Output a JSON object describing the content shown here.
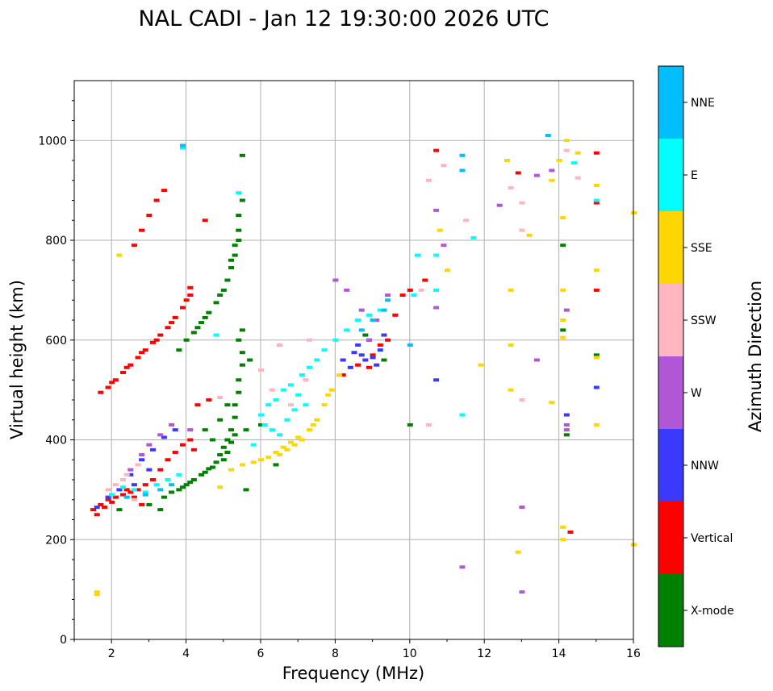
{
  "chart_data": {
    "type": "scatter",
    "title": "NAL CADI - Jan 12 19:30:00 2026 UTC",
    "xlabel": "Frequency (MHz)",
    "ylabel": "Virtual height (km)",
    "xlim": [
      1,
      16
    ],
    "ylim": [
      0,
      1120
    ],
    "xticks": [
      2,
      4,
      6,
      8,
      10,
      12,
      14,
      16
    ],
    "xtick_labels": [
      "2",
      "4",
      "6",
      "8",
      "10",
      "12",
      "14",
      "16"
    ],
    "yticks": [
      0,
      200,
      400,
      600,
      800,
      1000
    ],
    "ytick_labels": [
      "0",
      "200",
      "400",
      "600",
      "800",
      "1000"
    ],
    "grid": true,
    "colorbar": {
      "label": "Azimuth Direction",
      "categories": [
        "X-mode",
        "Vertical",
        "NNW",
        "W",
        "SSW",
        "SSE",
        "E",
        "NNE"
      ],
      "colors": [
        "#008000",
        "#ff0000",
        "#3a3aff",
        "#b157d6",
        "#ffb6c1",
        "#ffd700",
        "#00ffff",
        "#00bfff"
      ]
    },
    "series": [
      {
        "name": "X-mode",
        "color": "#008000",
        "points": [
          [
            3.0,
            270
          ],
          [
            3.4,
            285
          ],
          [
            3.8,
            300
          ],
          [
            4.0,
            310
          ],
          [
            4.2,
            320
          ],
          [
            4.4,
            330
          ],
          [
            4.6,
            342
          ],
          [
            4.8,
            355
          ],
          [
            4.9,
            370
          ],
          [
            5.0,
            385
          ],
          [
            5.1,
            400
          ],
          [
            5.2,
            420
          ],
          [
            5.3,
            445
          ],
          [
            5.3,
            470
          ],
          [
            5.4,
            495
          ],
          [
            5.4,
            520
          ],
          [
            5.5,
            550
          ],
          [
            5.5,
            575
          ],
          [
            5.4,
            600
          ],
          [
            5.5,
            620
          ],
          [
            3.3,
            260
          ],
          [
            3.6,
            295
          ],
          [
            3.9,
            305
          ],
          [
            4.1,
            315
          ],
          [
            4.5,
            335
          ],
          [
            4.7,
            345
          ],
          [
            5.0,
            360
          ],
          [
            5.1,
            375
          ],
          [
            5.2,
            395
          ],
          [
            5.3,
            410
          ],
          [
            3.8,
            580
          ],
          [
            4.0,
            600
          ],
          [
            4.2,
            615
          ],
          [
            4.4,
            635
          ],
          [
            4.6,
            655
          ],
          [
            4.8,
            675
          ],
          [
            5.0,
            700
          ],
          [
            5.1,
            720
          ],
          [
            5.2,
            745
          ],
          [
            5.3,
            770
          ],
          [
            5.3,
            790
          ],
          [
            5.4,
            820
          ],
          [
            5.4,
            850
          ],
          [
            5.5,
            880
          ],
          [
            5.5,
            970
          ],
          [
            4.3,
            625
          ],
          [
            4.5,
            645
          ],
          [
            4.9,
            690
          ],
          [
            5.2,
            760
          ],
          [
            5.4,
            800
          ],
          [
            4.5,
            420
          ],
          [
            4.7,
            400
          ],
          [
            4.9,
            440
          ],
          [
            5.1,
            470
          ],
          [
            5.6,
            300
          ],
          [
            5.6,
            420
          ],
          [
            5.7,
            560
          ],
          [
            6.0,
            430
          ],
          [
            6.4,
            350
          ],
          [
            2.2,
            260
          ],
          [
            14.1,
            790
          ],
          [
            14.1,
            620
          ],
          [
            14.2,
            410
          ],
          [
            15.0,
            570
          ],
          [
            10.0,
            430
          ],
          [
            9.3,
            560
          ],
          [
            8.8,
            610
          ],
          [
            6.5,
            590
          ]
        ]
      },
      {
        "name": "Vertical",
        "color": "#ff0000",
        "points": [
          [
            1.5,
            260
          ],
          [
            1.7,
            270
          ],
          [
            1.9,
            280
          ],
          [
            2.1,
            285
          ],
          [
            2.3,
            290
          ],
          [
            2.5,
            295
          ],
          [
            2.7,
            300
          ],
          [
            2.9,
            310
          ],
          [
            3.1,
            320
          ],
          [
            3.3,
            340
          ],
          [
            3.5,
            360
          ],
          [
            3.7,
            375
          ],
          [
            3.9,
            390
          ],
          [
            4.1,
            400
          ],
          [
            1.6,
            250
          ],
          [
            1.8,
            265
          ],
          [
            2.0,
            275
          ],
          [
            2.4,
            300
          ],
          [
            2.6,
            285
          ],
          [
            2.8,
            270
          ],
          [
            1.7,
            495
          ],
          [
            1.9,
            505
          ],
          [
            2.1,
            520
          ],
          [
            2.3,
            535
          ],
          [
            2.5,
            550
          ],
          [
            2.7,
            565
          ],
          [
            2.9,
            580
          ],
          [
            3.1,
            595
          ],
          [
            3.3,
            610
          ],
          [
            3.5,
            625
          ],
          [
            3.7,
            645
          ],
          [
            3.9,
            665
          ],
          [
            4.1,
            690
          ],
          [
            4.1,
            705
          ],
          [
            2.0,
            515
          ],
          [
            2.4,
            545
          ],
          [
            2.8,
            575
          ],
          [
            3.2,
            600
          ],
          [
            3.6,
            635
          ],
          [
            4.0,
            680
          ],
          [
            2.6,
            790
          ],
          [
            2.8,
            820
          ],
          [
            3.0,
            850
          ],
          [
            3.2,
            880
          ],
          [
            3.4,
            900
          ],
          [
            3.9,
            990
          ],
          [
            4.5,
            840
          ],
          [
            4.3,
            470
          ],
          [
            4.6,
            480
          ],
          [
            4.2,
            380
          ],
          [
            8.2,
            530
          ],
          [
            8.6,
            550
          ],
          [
            9.0,
            570
          ],
          [
            9.2,
            590
          ],
          [
            9.4,
            600
          ],
          [
            9.6,
            650
          ],
          [
            9.8,
            690
          ],
          [
            10.0,
            700
          ],
          [
            10.4,
            720
          ],
          [
            10.7,
            980
          ],
          [
            12.9,
            935
          ],
          [
            14.3,
            215
          ],
          [
            15.0,
            700
          ],
          [
            15.0,
            875
          ],
          [
            15.0,
            975
          ],
          [
            8.9,
            545
          ]
        ]
      },
      {
        "name": "NNW",
        "color": "#3a3aff",
        "points": [
          [
            1.6,
            265
          ],
          [
            1.9,
            285
          ],
          [
            2.2,
            300
          ],
          [
            2.5,
            330
          ],
          [
            2.8,
            360
          ],
          [
            3.1,
            380
          ],
          [
            3.4,
            405
          ],
          [
            3.7,
            420
          ],
          [
            8.2,
            560
          ],
          [
            8.5,
            575
          ],
          [
            8.8,
            560
          ],
          [
            9.0,
            565
          ],
          [
            9.2,
            580
          ],
          [
            8.6,
            590
          ],
          [
            8.9,
            600
          ],
          [
            9.3,
            610
          ],
          [
            8.4,
            545
          ],
          [
            10.7,
            520
          ],
          [
            14.2,
            450
          ],
          [
            15.0,
            505
          ],
          [
            2.0,
            290
          ],
          [
            2.6,
            310
          ],
          [
            3.0,
            340
          ],
          [
            9.1,
            550
          ],
          [
            8.7,
            570
          ]
        ]
      },
      {
        "name": "W",
        "color": "#b157d6",
        "points": [
          [
            2.5,
            340
          ],
          [
            2.8,
            370
          ],
          [
            3.0,
            390
          ],
          [
            3.3,
            410
          ],
          [
            3.6,
            430
          ],
          [
            4.1,
            420
          ],
          [
            8.0,
            720
          ],
          [
            8.3,
            700
          ],
          [
            8.7,
            660
          ],
          [
            9.1,
            640
          ],
          [
            9.4,
            690
          ],
          [
            10.7,
            860
          ],
          [
            10.9,
            790
          ],
          [
            13.4,
            930
          ],
          [
            13.8,
            940
          ],
          [
            14.2,
            660
          ],
          [
            14.2,
            430
          ],
          [
            14.2,
            420
          ],
          [
            13.0,
            265
          ],
          [
            13.0,
            95
          ],
          [
            11.4,
            145
          ],
          [
            12.4,
            870
          ],
          [
            13.4,
            560
          ],
          [
            10.7,
            665
          ],
          [
            8.9,
            600
          ]
        ]
      },
      {
        "name": "SSW",
        "color": "#ffb6c1",
        "points": [
          [
            2.1,
            310
          ],
          [
            2.4,
            330
          ],
          [
            2.7,
            350
          ],
          [
            2.3,
            320
          ],
          [
            1.9,
            300
          ],
          [
            2.6,
            280
          ],
          [
            4.9,
            485
          ],
          [
            6.0,
            540
          ],
          [
            6.3,
            500
          ],
          [
            6.8,
            470
          ],
          [
            7.2,
            520
          ],
          [
            10.3,
            700
          ],
          [
            10.5,
            430
          ],
          [
            10.5,
            920
          ],
          [
            10.9,
            950
          ],
          [
            11.5,
            840
          ],
          [
            12.7,
            905
          ],
          [
            13.0,
            875
          ],
          [
            13.0,
            820
          ],
          [
            14.2,
            980
          ],
          [
            14.5,
            925
          ],
          [
            13.0,
            480
          ],
          [
            6.5,
            590
          ],
          [
            7.3,
            600
          ]
        ]
      },
      {
        "name": "SSE",
        "color": "#ffd700",
        "points": [
          [
            5.2,
            340
          ],
          [
            5.5,
            350
          ],
          [
            5.8,
            355
          ],
          [
            6.0,
            360
          ],
          [
            6.2,
            365
          ],
          [
            6.5,
            370
          ],
          [
            6.7,
            380
          ],
          [
            6.9,
            390
          ],
          [
            7.1,
            400
          ],
          [
            7.3,
            420
          ],
          [
            7.5,
            440
          ],
          [
            7.7,
            470
          ],
          [
            7.9,
            500
          ],
          [
            8.1,
            530
          ],
          [
            6.4,
            375
          ],
          [
            6.6,
            385
          ],
          [
            6.8,
            395
          ],
          [
            7.0,
            405
          ],
          [
            7.4,
            430
          ],
          [
            7.8,
            490
          ],
          [
            4.9,
            305
          ],
          [
            1.6,
            95
          ],
          [
            1.6,
            90
          ],
          [
            2.2,
            770
          ],
          [
            10.8,
            820
          ],
          [
            11.0,
            740
          ],
          [
            12.6,
            960
          ],
          [
            12.7,
            700
          ],
          [
            12.7,
            590
          ],
          [
            12.7,
            500
          ],
          [
            12.9,
            175
          ],
          [
            13.2,
            810
          ],
          [
            13.8,
            920
          ],
          [
            13.8,
            475
          ],
          [
            14.0,
            960
          ],
          [
            14.1,
            845
          ],
          [
            14.1,
            700
          ],
          [
            14.1,
            640
          ],
          [
            14.1,
            605
          ],
          [
            14.1,
            225
          ],
          [
            14.1,
            200
          ],
          [
            14.5,
            975
          ],
          [
            15.0,
            910
          ],
          [
            15.0,
            740
          ],
          [
            15.0,
            565
          ],
          [
            15.0,
            430
          ],
          [
            16.0,
            855
          ],
          [
            16.0,
            190
          ],
          [
            11.9,
            550
          ],
          [
            14.2,
            1000
          ]
        ]
      },
      {
        "name": "E",
        "color": "#00ffff",
        "points": [
          [
            2.0,
            290
          ],
          [
            2.3,
            305
          ],
          [
            2.6,
            300
          ],
          [
            2.9,
            295
          ],
          [
            3.2,
            310
          ],
          [
            3.5,
            320
          ],
          [
            3.8,
            330
          ],
          [
            6.0,
            450
          ],
          [
            6.2,
            470
          ],
          [
            6.4,
            480
          ],
          [
            6.6,
            500
          ],
          [
            6.8,
            510
          ],
          [
            7.0,
            490
          ],
          [
            7.2,
            470
          ],
          [
            6.1,
            430
          ],
          [
            6.3,
            420
          ],
          [
            6.5,
            410
          ],
          [
            6.7,
            440
          ],
          [
            6.9,
            460
          ],
          [
            7.1,
            530
          ],
          [
            7.3,
            545
          ],
          [
            7.5,
            560
          ],
          [
            7.7,
            580
          ],
          [
            8.0,
            600
          ],
          [
            8.3,
            620
          ],
          [
            8.6,
            640
          ],
          [
            8.9,
            650
          ],
          [
            9.2,
            660
          ],
          [
            10.1,
            690
          ],
          [
            10.2,
            770
          ],
          [
            10.7,
            770
          ],
          [
            10.7,
            700
          ],
          [
            11.7,
            805
          ],
          [
            11.4,
            450
          ],
          [
            14.4,
            955
          ],
          [
            15.0,
            880
          ],
          [
            3.9,
            985
          ],
          [
            5.4,
            895
          ],
          [
            4.8,
            610
          ],
          [
            5.8,
            390
          ]
        ]
      },
      {
        "name": "NNE",
        "color": "#00bfff",
        "points": [
          [
            2.4,
            285
          ],
          [
            2.9,
            290
          ],
          [
            3.3,
            300
          ],
          [
            3.6,
            310
          ],
          [
            9.0,
            640
          ],
          [
            9.3,
            660
          ],
          [
            9.4,
            680
          ],
          [
            8.7,
            620
          ],
          [
            11.4,
            970
          ],
          [
            11.4,
            940
          ],
          [
            13.7,
            1010
          ],
          [
            10.0,
            590
          ],
          [
            3.9,
            990
          ]
        ]
      }
    ]
  }
}
